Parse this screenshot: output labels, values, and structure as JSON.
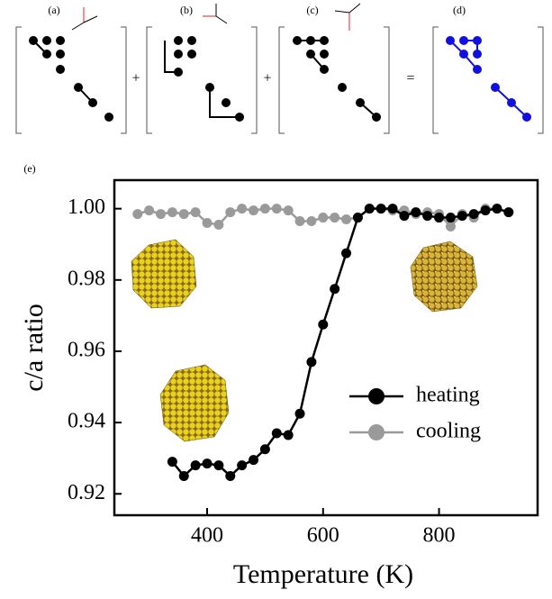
{
  "panel_labels": [
    "(a)",
    "(b)",
    "(c)",
    "(d)",
    "(e)"
  ],
  "operators": [
    "+",
    "+",
    "="
  ],
  "chart_data": {
    "type": "line",
    "x_label": "Temperature (K)",
    "y_label": "c/a ratio",
    "xlim": [
      240,
      970
    ],
    "ylim": [
      0.914,
      1.008
    ],
    "xticks": [
      400,
      600,
      800
    ],
    "yticks": [
      0.92,
      0.94,
      0.96,
      0.98,
      {
        "value": 1,
        "label": "1.00"
      }
    ],
    "legend": "lower right",
    "series": [
      {
        "name": "cooling",
        "color": "#9a9a9a",
        "x": [
          280,
          300,
          320,
          340,
          360,
          380,
          400,
          420,
          440,
          460,
          480,
          500,
          520,
          540,
          560,
          580,
          600,
          620,
          640,
          660,
          680,
          700,
          720,
          740,
          760,
          780,
          800,
          820,
          840,
          860,
          880,
          900
        ],
        "values": [
          0.9985,
          0.9995,
          0.9985,
          0.999,
          0.9985,
          0.999,
          0.996,
          0.9955,
          0.999,
          1.0,
          0.9995,
          1.0,
          1.0,
          0.9995,
          0.9965,
          0.9965,
          0.9975,
          0.9975,
          0.997,
          0.9975,
          1.0,
          1.0,
          0.9995,
          0.9995,
          0.9985,
          0.999,
          0.9985,
          0.995,
          0.9985,
          0.9975,
          1.0,
          1.0
        ]
      },
      {
        "name": "heating",
        "color": "#000000",
        "x": [
          340,
          360,
          380,
          400,
          420,
          440,
          460,
          480,
          500,
          520,
          540,
          560,
          580,
          600,
          620,
          640,
          660,
          680,
          700,
          720,
          740,
          760,
          780,
          800,
          820,
          840,
          860,
          880,
          900,
          920
        ],
        "values": [
          0.929,
          0.925,
          0.928,
          0.9285,
          0.928,
          0.925,
          0.928,
          0.9295,
          0.9325,
          0.937,
          0.9365,
          0.9425,
          0.957,
          0.9675,
          0.9775,
          0.9875,
          0.9975,
          1.0,
          1.0,
          1.0,
          0.998,
          0.999,
          0.998,
          0.9975,
          0.9975,
          0.998,
          0.9985,
          0.9995,
          1.0,
          0.999
        ]
      }
    ]
  }
}
